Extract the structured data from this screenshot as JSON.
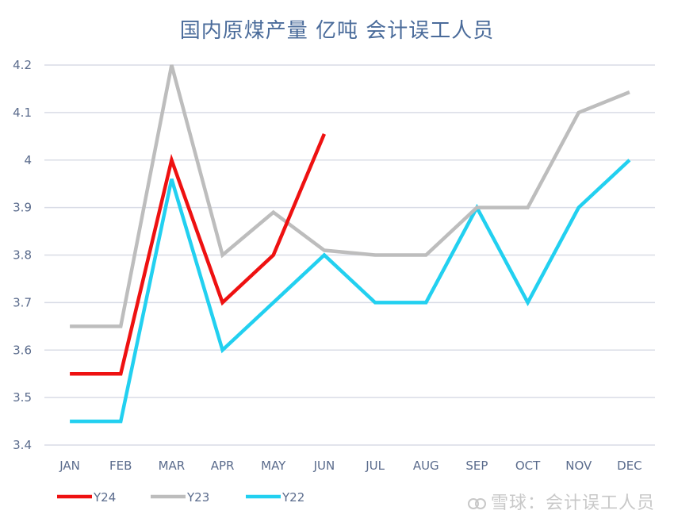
{
  "chart_data": {
    "type": "line",
    "title": "国内原煤产量 亿吨 会计误工人员",
    "categories": [
      "JAN",
      "FEB",
      "MAR",
      "APR",
      "MAY",
      "JUN",
      "JUL",
      "AUG",
      "SEP",
      "OCT",
      "NOV",
      "DEC"
    ],
    "ylim": [
      3.4,
      4.2
    ],
    "yticks": [
      "3.4",
      "3.5",
      "3.6",
      "3.7",
      "3.8",
      "3.9",
      "4",
      "4.1",
      "4.2"
    ],
    "grid": true,
    "legend_position": "bottom-left",
    "series": [
      {
        "name": "Y24",
        "color": "#ee1111",
        "values": [
          3.55,
          3.55,
          4.0,
          3.7,
          3.8,
          4.055,
          null,
          null,
          null,
          null,
          null,
          null
        ]
      },
      {
        "name": "Y23",
        "color": "#bdbdbd",
        "values": [
          3.65,
          3.65,
          4.2,
          3.8,
          3.89,
          3.81,
          3.8,
          3.8,
          3.9,
          3.9,
          4.1,
          4.143
        ]
      },
      {
        "name": "Y22",
        "color": "#22d0f0",
        "values": [
          3.45,
          3.45,
          3.96,
          3.6,
          3.7,
          3.8,
          3.7,
          3.7,
          3.9,
          3.7,
          3.9,
          4.0
        ]
      }
    ]
  },
  "watermark": "雪球：会计误工人员"
}
